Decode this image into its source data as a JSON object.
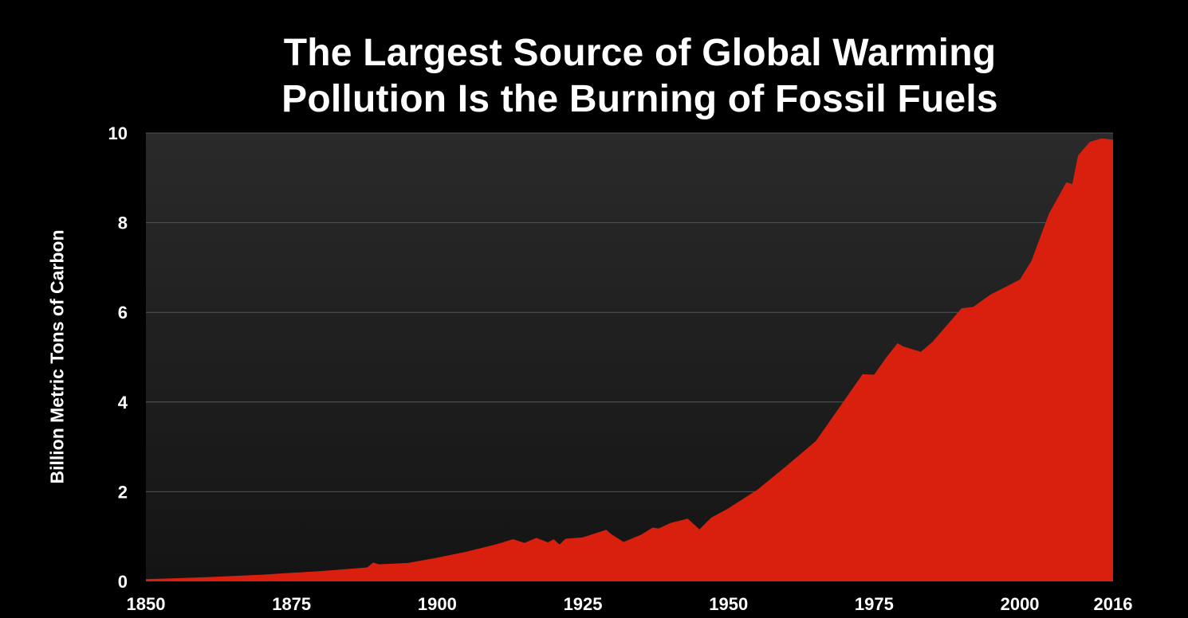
{
  "title": {
    "line1": "The Largest Source of Global Warming",
    "line2": "Pollution Is the Burning of Fossil Fuels"
  },
  "chart_data": {
    "type": "area",
    "title": "The Largest Source of Global Warming Pollution Is the Burning of Fossil Fuels",
    "xlabel": "",
    "ylabel": "Billion Metric Tons of Carbon",
    "xlim": [
      1850,
      2016
    ],
    "ylim": [
      0,
      10
    ],
    "grid": true,
    "x_ticks": [
      "1850",
      "1875",
      "1900",
      "1925",
      "1950",
      "1975",
      "2000",
      "2016"
    ],
    "y_ticks": [
      "0",
      "2",
      "4",
      "6",
      "8",
      "10"
    ],
    "colors": {
      "area": "#d9200f",
      "plot_background_top": "#2a2a2a",
      "plot_background_bottom": "#151515",
      "gridline": "#555555",
      "background": "#000000"
    },
    "series": [
      {
        "x": [
          1850,
          1855,
          1860,
          1865,
          1870,
          1875,
          1880,
          1885,
          1888,
          1889,
          1890,
          1895,
          1900,
          1905,
          1910,
          1913,
          1915,
          1917,
          1919,
          1920,
          1921,
          1922,
          1925,
          1929,
          1930,
          1932,
          1935,
          1937,
          1938,
          1940,
          1943,
          1945,
          1947,
          1950,
          1955,
          1960,
          1965,
          1970,
          1973,
          1975,
          1977,
          1979,
          1980,
          1983,
          1985,
          1990,
          1992,
          1995,
          2000,
          2002,
          2005,
          2008,
          2009,
          2010,
          2012,
          2014,
          2016
        ],
        "y": [
          0.05,
          0.07,
          0.09,
          0.12,
          0.15,
          0.19,
          0.23,
          0.28,
          0.31,
          0.42,
          0.38,
          0.41,
          0.53,
          0.66,
          0.82,
          0.94,
          0.86,
          0.97,
          0.87,
          0.94,
          0.82,
          0.95,
          0.98,
          1.15,
          1.04,
          0.88,
          1.04,
          1.2,
          1.18,
          1.3,
          1.4,
          1.16,
          1.42,
          1.63,
          2.05,
          2.58,
          3.13,
          4.06,
          4.62,
          4.61,
          4.98,
          5.31,
          5.24,
          5.12,
          5.34,
          6.09,
          6.12,
          6.4,
          6.73,
          7.15,
          8.2,
          8.9,
          8.86,
          9.5,
          9.8,
          9.88,
          9.85
        ]
      }
    ]
  }
}
